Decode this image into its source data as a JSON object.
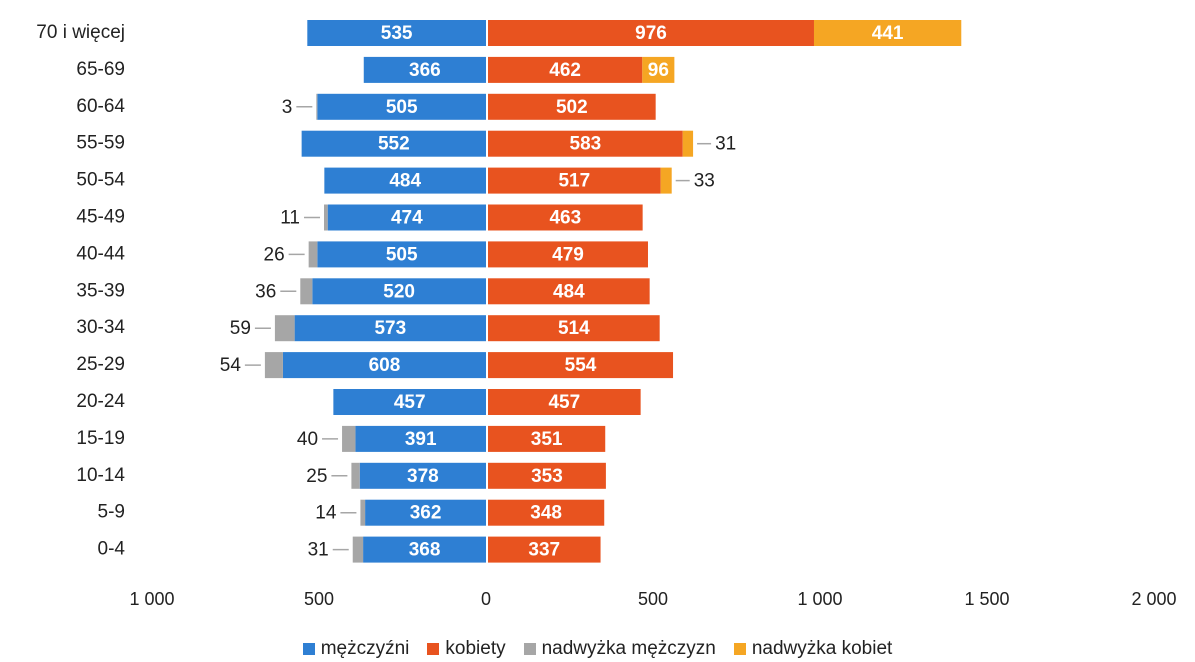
{
  "chart_data": {
    "type": "bar",
    "orientation": "horizontal",
    "layout": "population-pyramid",
    "categories": [
      "70 i więcej",
      "65-69",
      "60-64",
      "55-59",
      "50-54",
      "45-49",
      "40-44",
      "35-39",
      "30-34",
      "25-29",
      "20-24",
      "15-19",
      "10-14",
      "5-9",
      "0-4"
    ],
    "series": [
      {
        "name": "mężczyźni",
        "color": "#2E7FD3",
        "side": "left",
        "values": [
          535,
          366,
          505,
          552,
          484,
          474,
          505,
          520,
          573,
          608,
          457,
          391,
          378,
          362,
          368
        ]
      },
      {
        "name": "kobiety",
        "color": "#E8531F",
        "side": "right",
        "values": [
          976,
          462,
          502,
          583,
          517,
          463,
          479,
          484,
          514,
          554,
          457,
          351,
          353,
          348,
          337
        ]
      },
      {
        "name": "nadwyżka mężczyzn",
        "color": "#A6A6A6",
        "side": "left",
        "values": [
          null,
          null,
          3,
          null,
          null,
          11,
          26,
          36,
          59,
          54,
          null,
          40,
          25,
          14,
          31
        ]
      },
      {
        "name": "nadwyżka kobiet",
        "color": "#F5A623",
        "side": "right",
        "values": [
          441,
          96,
          null,
          31,
          33,
          null,
          null,
          null,
          null,
          null,
          null,
          null,
          null,
          null,
          null
        ]
      }
    ],
    "xaxis": {
      "ticks": [
        "1 000",
        "500",
        "0",
        "500",
        "1 000",
        "1 500",
        "2 000"
      ],
      "tick_values": [
        -1000,
        -500,
        0,
        500,
        1000,
        1500,
        2000
      ],
      "range": [
        -1000,
        2000
      ]
    },
    "grid": false,
    "legend_position": "bottom"
  }
}
